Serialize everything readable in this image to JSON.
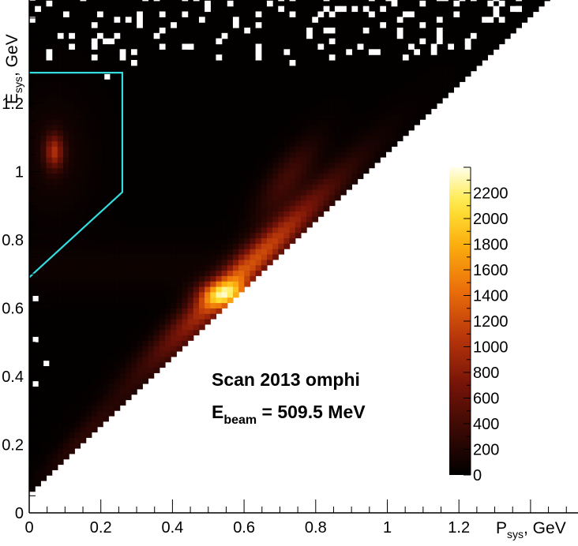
{
  "chart_data": {
    "type": "heatmap",
    "xlabel": {
      "main": "P",
      "sub": "sys",
      "unit": ", GeV"
    },
    "ylabel": {
      "main": "E",
      "sub": "sys",
      "unit": ", GeV"
    },
    "xlim": [
      0,
      1.55
    ],
    "ylim": [
      0,
      1.5
    ],
    "x_ticks": [
      {
        "value": 0,
        "label": "0"
      },
      {
        "value": 0.2,
        "label": "0.2"
      },
      {
        "value": 0.4,
        "label": "0.4"
      },
      {
        "value": 0.6,
        "label": "0.6"
      },
      {
        "value": 0.8,
        "label": "0.8"
      },
      {
        "value": 1.0,
        "label": "1"
      },
      {
        "value": 1.2,
        "label": "1.2"
      }
    ],
    "y_ticks": [
      {
        "value": 0,
        "label": "0"
      },
      {
        "value": 0.2,
        "label": "0.2"
      },
      {
        "value": 0.4,
        "label": "0.4"
      },
      {
        "value": 0.6,
        "label": "0.6"
      },
      {
        "value": 0.8,
        "label": "0.8"
      },
      {
        "value": 1.0,
        "label": "1"
      },
      {
        "value": 1.2,
        "label": "1.2"
      }
    ],
    "colorbar": {
      "range": [
        0,
        2400
      ],
      "ticks": [
        {
          "value": 0,
          "label": "0"
        },
        {
          "value": 200,
          "label": "200"
        },
        {
          "value": 400,
          "label": "400"
        },
        {
          "value": 600,
          "label": "600"
        },
        {
          "value": 800,
          "label": "800"
        },
        {
          "value": 1000,
          "label": "1000"
        },
        {
          "value": 1200,
          "label": "1200"
        },
        {
          "value": 1400,
          "label": "1400"
        },
        {
          "value": 1600,
          "label": "1600"
        },
        {
          "value": 1800,
          "label": "1800"
        },
        {
          "value": 2000,
          "label": "2000"
        },
        {
          "value": 2200,
          "label": "2200"
        }
      ]
    },
    "populated_region": {
      "description_lower_edge": "E = P + 0.05 (kinematic boundary)",
      "lower_edge_points": [
        [
          0.0,
          0.06
        ],
        [
          0.07,
          0.06
        ],
        [
          1.55,
          1.6
        ]
      ]
    },
    "hot_spots": [
      {
        "x": 0.55,
        "y": 0.64,
        "peak": 2300
      },
      {
        "x": 0.07,
        "y": 1.06,
        "peak": 900
      }
    ],
    "selection_region": {
      "color": "#33dddd",
      "points": [
        [
          0.0,
          1.29
        ],
        [
          0.26,
          1.29
        ],
        [
          0.26,
          0.94
        ],
        [
          0.0,
          0.69
        ]
      ]
    },
    "annotations": {
      "line1": "Scan 2013 omphi",
      "line2_main": "E",
      "line2_sub": "beam",
      "line2_rest": " = 509.5 MeV"
    }
  }
}
